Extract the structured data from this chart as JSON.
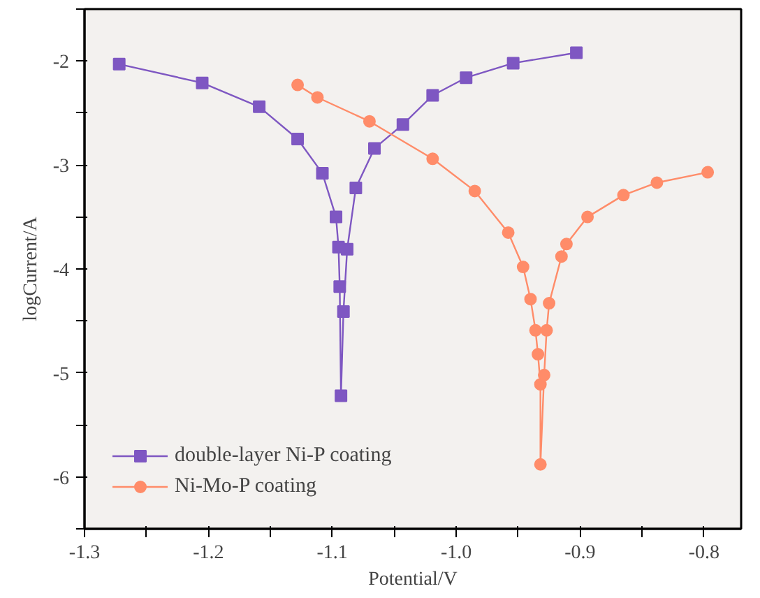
{
  "chart_data": {
    "type": "line",
    "xlabel": "Potential/V",
    "ylabel": "logCurrent/A",
    "xlim": [
      -1.3,
      -0.77
    ],
    "ylim": [
      -6.5,
      -1.5
    ],
    "xticks": [
      -1.3,
      {
        "value": -1.25,
        "label": null
      },
      -1.2,
      {
        "value": -1.15,
        "label": null
      },
      -1.1,
      {
        "value": -1.05,
        "label": null
      },
      {
        "value": -1.0,
        "label": "-1.0"
      },
      {
        "value": -0.95,
        "label": null
      },
      -0.9,
      {
        "value": -0.85,
        "label": null
      },
      -0.8
    ],
    "yticks": [
      {
        "value": -6.5,
        "label": null
      },
      -6,
      {
        "value": -5.5,
        "label": null
      },
      -5,
      {
        "value": -4.5,
        "label": null
      },
      -4,
      {
        "value": -3.5,
        "label": null
      },
      -3,
      {
        "value": -2.5,
        "label": null
      },
      -2,
      {
        "value": -1.5,
        "label": null
      }
    ],
    "grid": false,
    "legend": "bottom left",
    "series": [
      {
        "name": "double-layer Ni-P coating",
        "color": "#7e57c2",
        "marker": "square",
        "x": [
          -1.272,
          -1.205,
          -1.159,
          -1.128,
          -1.108,
          -1.097,
          -1.095,
          -1.094,
          -1.093,
          -1.091,
          -1.088,
          -1.081,
          -1.066,
          -1.043,
          -1.019,
          -0.992,
          -0.954,
          -0.903
        ],
        "values": [
          -2.03,
          -2.21,
          -2.44,
          -2.75,
          -3.08,
          -3.5,
          -3.79,
          -4.17,
          -5.22,
          -4.41,
          -3.81,
          -3.22,
          -2.84,
          -2.61,
          -2.33,
          -2.16,
          -2.02,
          -1.92
        ]
      },
      {
        "name": "Ni-Mo-P coating",
        "color": "#ff8c69",
        "marker": "circle",
        "x": [
          -1.128,
          -1.112,
          -1.07,
          -1.019,
          -0.985,
          -0.958,
          -0.946,
          -0.94,
          -0.936,
          -0.934,
          -0.932,
          -0.932,
          -0.929,
          -0.927,
          -0.925,
          -0.915,
          -0.911,
          -0.894,
          -0.865,
          -0.838,
          -0.797
        ],
        "values": [
          -2.23,
          -2.35,
          -2.58,
          -2.94,
          -3.25,
          -3.65,
          -3.98,
          -4.29,
          -4.59,
          -4.82,
          -5.11,
          -5.88,
          -5.02,
          -4.59,
          -4.33,
          -3.88,
          -3.76,
          -3.5,
          -3.29,
          -3.17,
          -3.07
        ]
      }
    ]
  }
}
